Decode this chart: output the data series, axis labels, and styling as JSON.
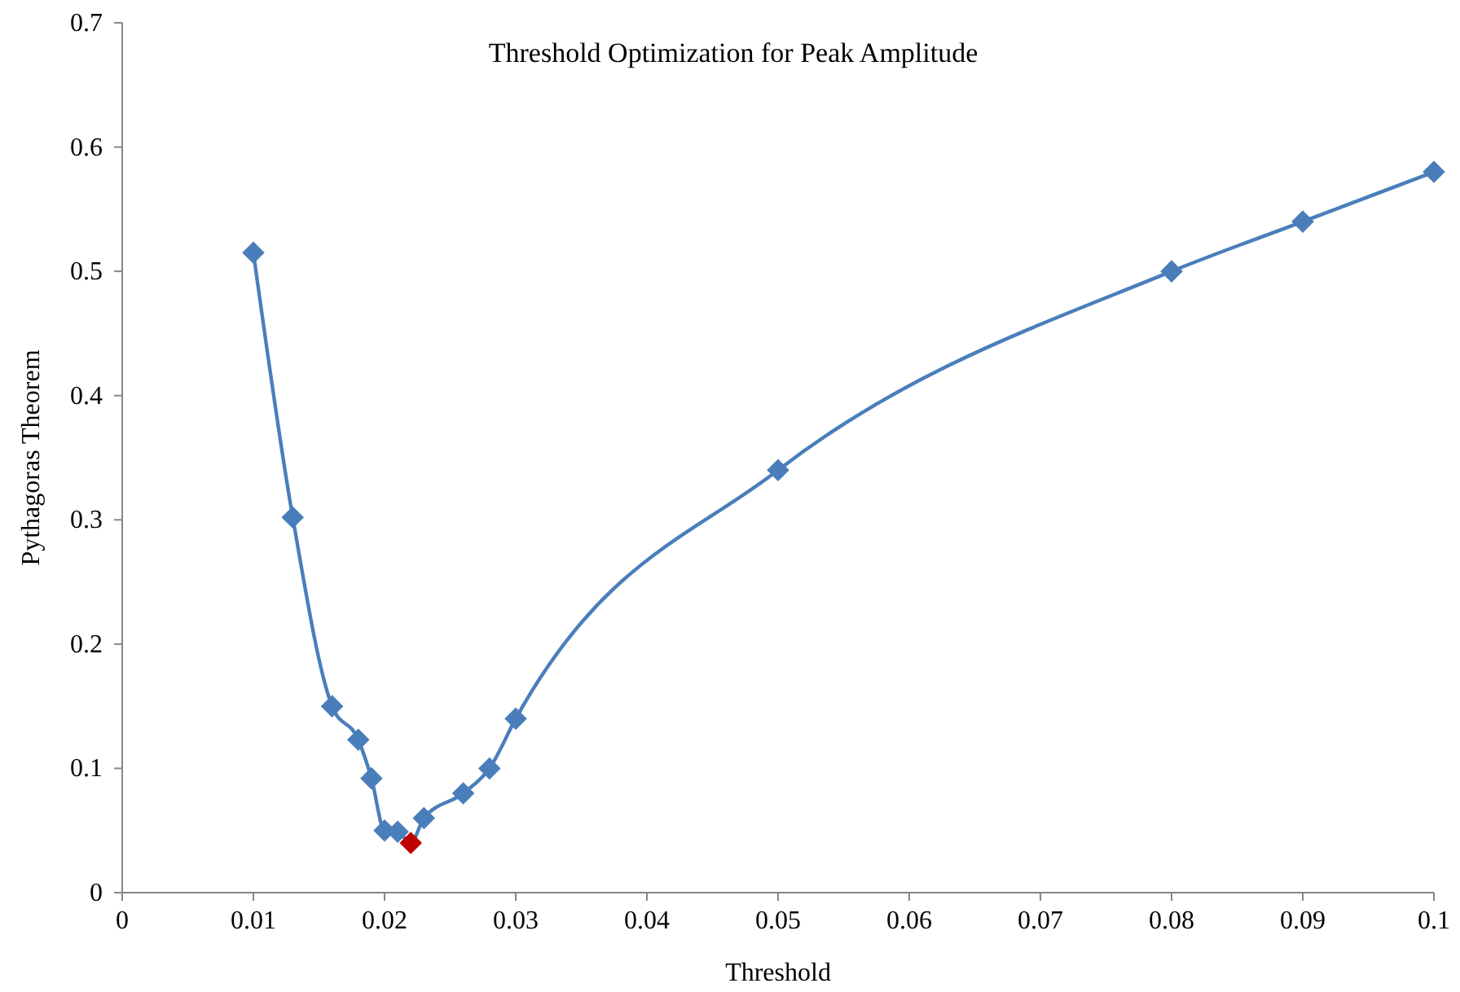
{
  "chart_data": {
    "type": "line",
    "title": "Threshold Optimization  for Peak Amplitude",
    "xlabel": "Threshold",
    "ylabel": "Pythagoras Theorem",
    "x": [
      0.01,
      0.013,
      0.016,
      0.018,
      0.019,
      0.02,
      0.021,
      0.022,
      0.023,
      0.026,
      0.028,
      0.03,
      0.05,
      0.08,
      0.09,
      0.1
    ],
    "series": [
      {
        "color": "#4a7ebb",
        "colors": [
          "#4a7ebb",
          "#4a7ebb",
          "#4a7ebb",
          "#4a7ebb",
          "#4a7ebb",
          "#4a7ebb",
          "#4a7ebb",
          "#c00000",
          "#4a7ebb",
          "#4a7ebb",
          "#4a7ebb",
          "#4a7ebb",
          "#4a7ebb",
          "#4a7ebb",
          "#4a7ebb",
          "#4a7ebb"
        ],
        "values": [
          0.515,
          0.302,
          0.15,
          0.123,
          0.092,
          0.05,
          0.049,
          0.04,
          0.06,
          0.08,
          0.1,
          0.14,
          0.34,
          0.5,
          0.54,
          0.58
        ]
      }
    ],
    "xlim": [
      0,
      0.1
    ],
    "xticks": [
      0,
      0.01,
      0.02,
      0.03,
      0.04,
      0.05,
      0.06,
      0.07,
      0.08,
      0.09,
      0.1
    ],
    "ylim": [
      0,
      0.7
    ],
    "yticks": [
      0,
      0.1,
      0.2,
      0.3,
      0.4,
      0.5,
      0.6,
      0.7
    ],
    "grid": false,
    "marker": "diamond",
    "line_style": "solid"
  }
}
